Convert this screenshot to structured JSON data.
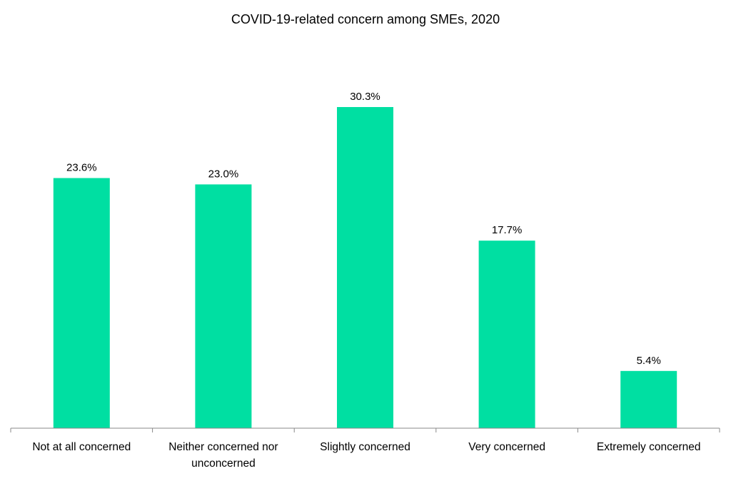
{
  "chart_data": {
    "type": "bar",
    "title": "COVID-19-related concern among SMEs, 2020",
    "xlabel": "",
    "ylabel": "",
    "categories": [
      "Not at all concerned",
      "Neither concerned nor unconcerned",
      "Slightly concerned",
      "Very concerned",
      "Extremely concerned"
    ],
    "category_lines": [
      [
        "Not at all concerned"
      ],
      [
        "Neither concerned nor",
        "unconcerned"
      ],
      [
        "Slightly concerned"
      ],
      [
        "Very concerned"
      ],
      [
        "Extremely concerned"
      ]
    ],
    "values": [
      23.6,
      23.0,
      30.3,
      17.7,
      5.4
    ],
    "data_labels": [
      "23.6%",
      "23.0%",
      "30.3%",
      "17.7%",
      "5.4%"
    ],
    "ylim": [
      0,
      36.7
    ],
    "grid": false,
    "legend": "none",
    "colors": {
      "bar": "#00DFA2",
      "axis": "#888888",
      "text": "#000000"
    }
  }
}
